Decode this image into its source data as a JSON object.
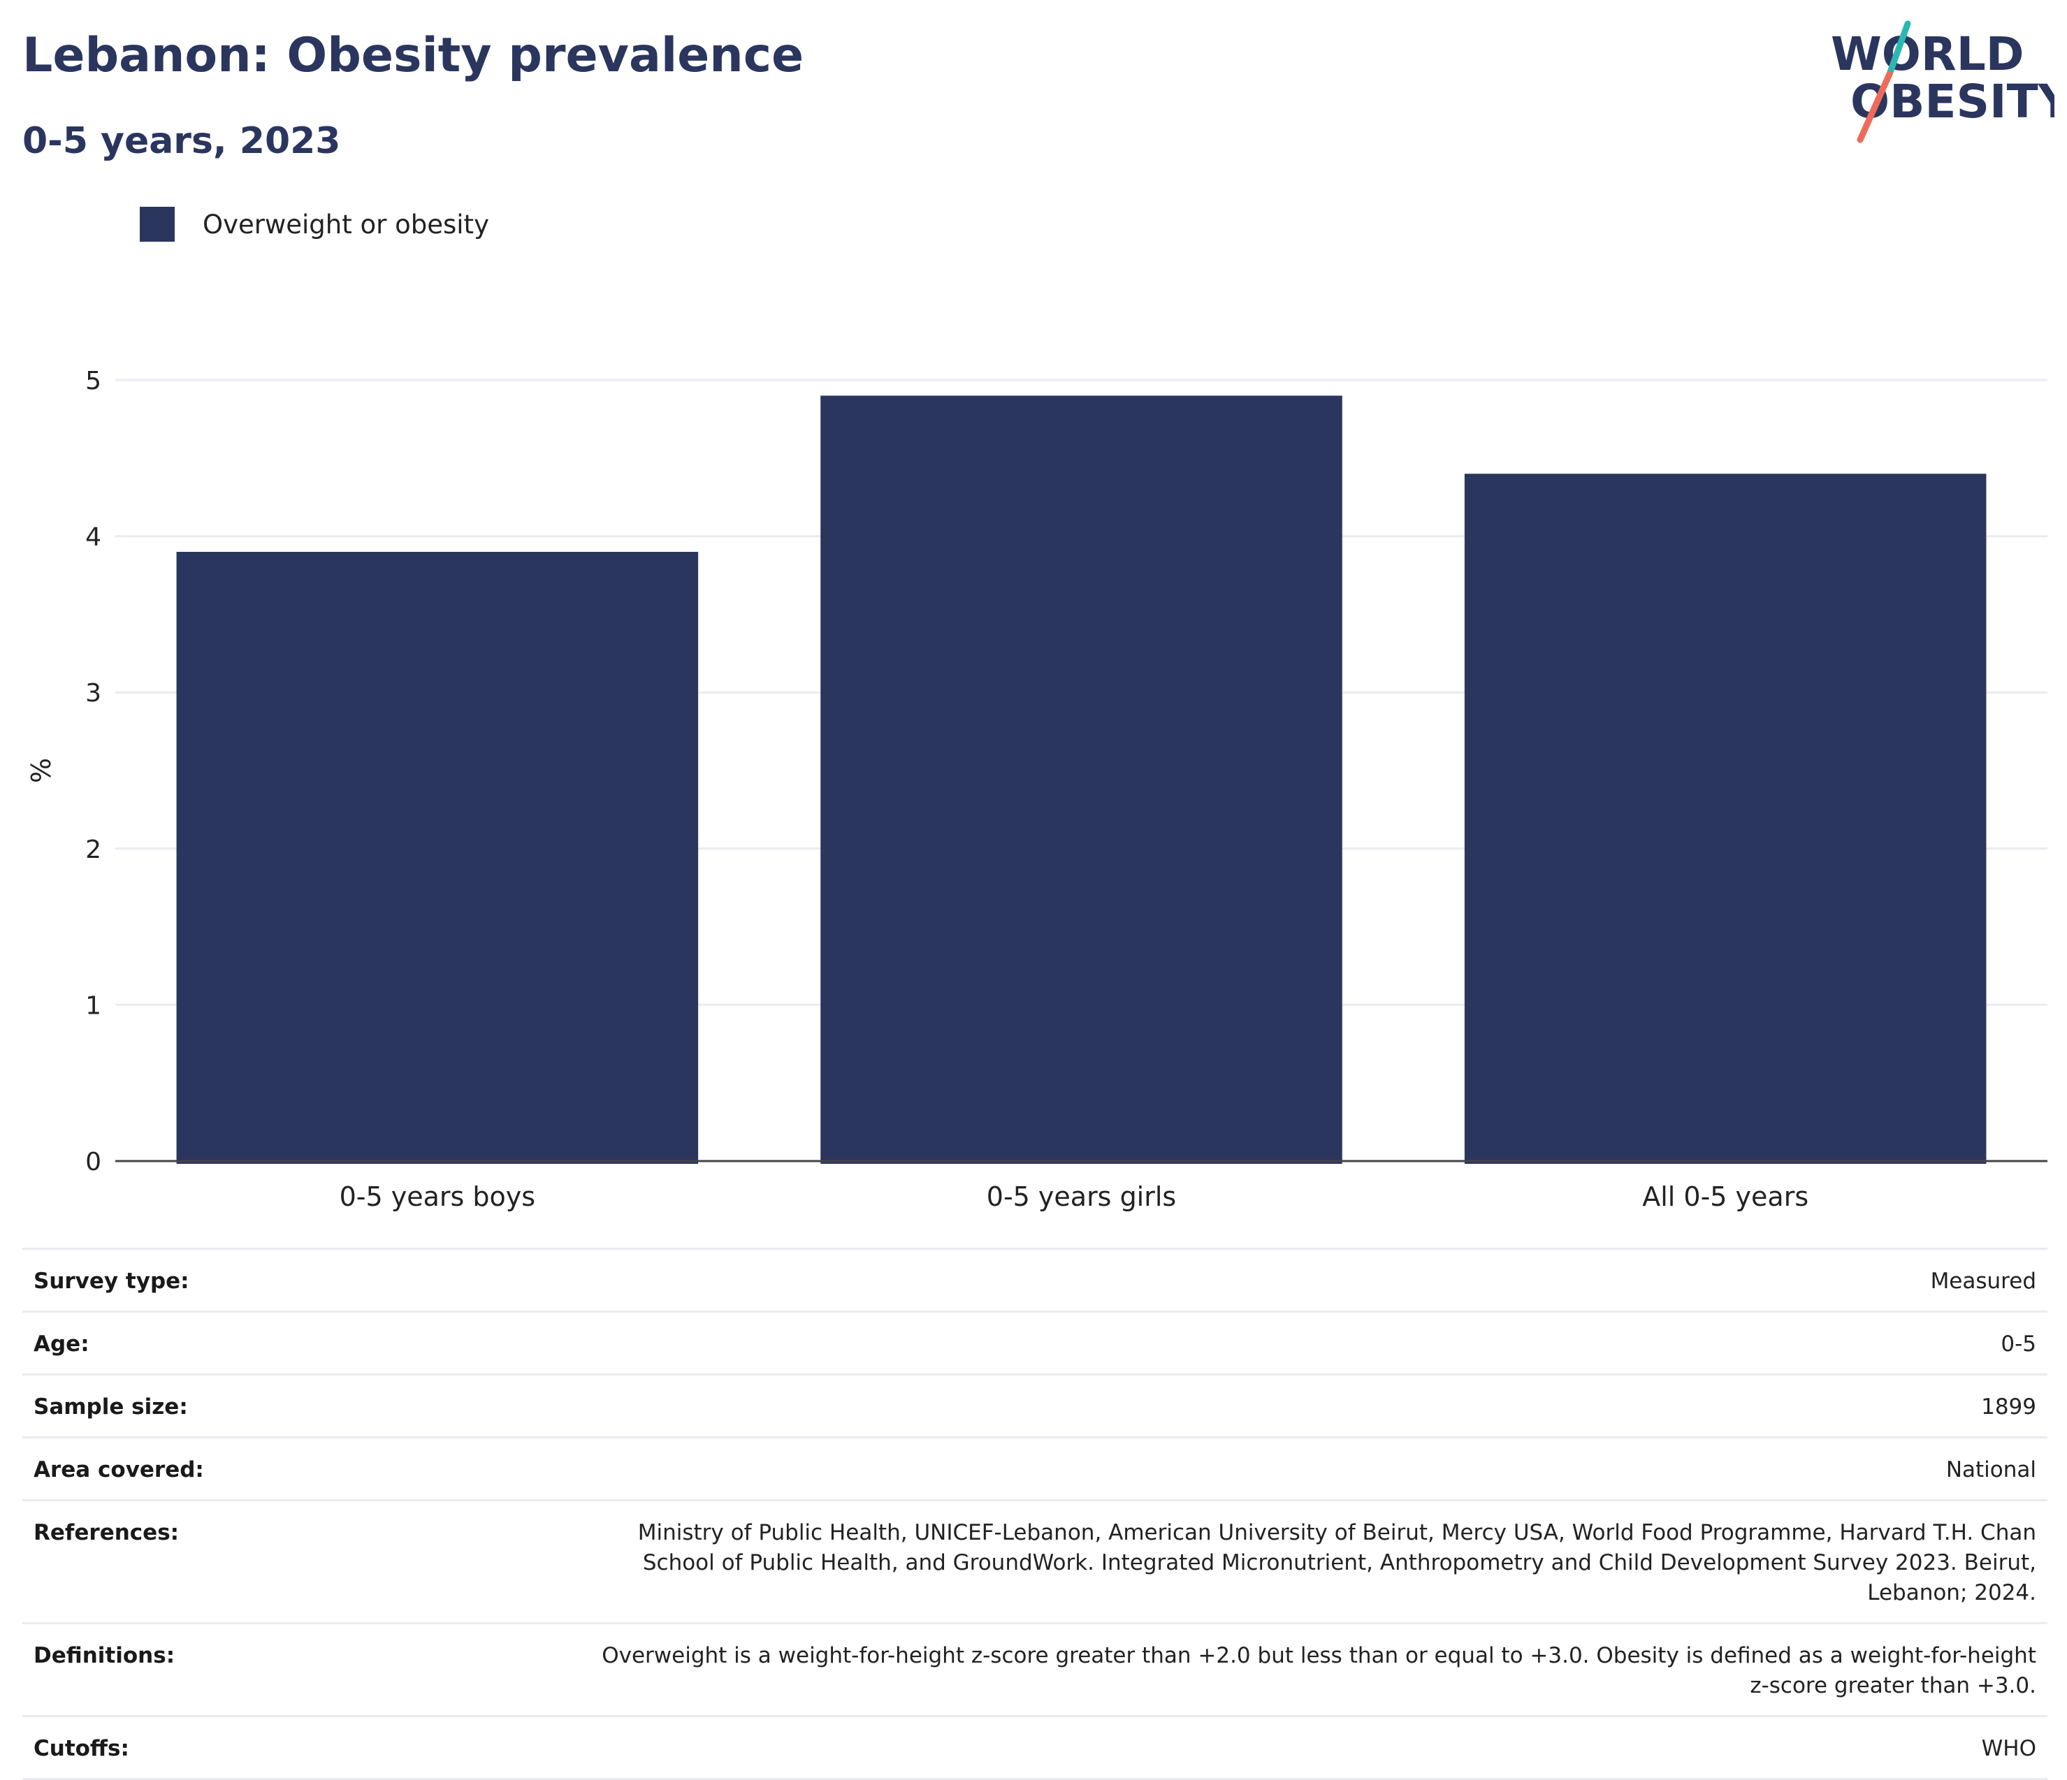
{
  "title": "Lebanon: Obesity prevalence",
  "subtitle": "0-5 years, 2023",
  "logo": {
    "line1": "WORLD",
    "line2": "OBESITY",
    "colors": {
      "text": "#2b365f",
      "teal": "#2ab8b3",
      "coral": "#ee6a5a"
    }
  },
  "chart_data": {
    "type": "bar",
    "categories": [
      "0-5 years boys",
      "0-5 years girls",
      "All 0-5 years"
    ],
    "series": [
      {
        "name": "Overweight or obesity",
        "values": [
          3.9,
          4.9,
          4.4
        ],
        "color": "#2b365f"
      }
    ],
    "ylabel": "%",
    "xlabel": "",
    "ylim": [
      0,
      5
    ],
    "yticks": [
      0,
      1,
      2,
      3,
      4,
      5
    ],
    "grid": true,
    "legend": "top-left"
  },
  "metadata": [
    {
      "label": "Survey type:",
      "value": "Measured"
    },
    {
      "label": "Age:",
      "value": "0-5"
    },
    {
      "label": "Sample size:",
      "value": "1899"
    },
    {
      "label": "Area covered:",
      "value": "National"
    },
    {
      "label": "References:",
      "value": "Ministry of Public Health, UNICEF-Lebanon, American University of Beirut, Mercy USA, World Food Programme, Harvard T.H. Chan School of Public Health, and GroundWork. Integrated Micronutrient, Anthropometry and Child Development Survey 2023. Beirut, Lebanon; 2024."
    },
    {
      "label": "Definitions:",
      "value": "Overweight is a weight-for-height z-score greater than +2.0 but less than or equal to +3.0. Obesity is defined as a weight-for-height z-score greater than +3.0."
    },
    {
      "label": "Cutoffs:",
      "value": "WHO"
    }
  ]
}
